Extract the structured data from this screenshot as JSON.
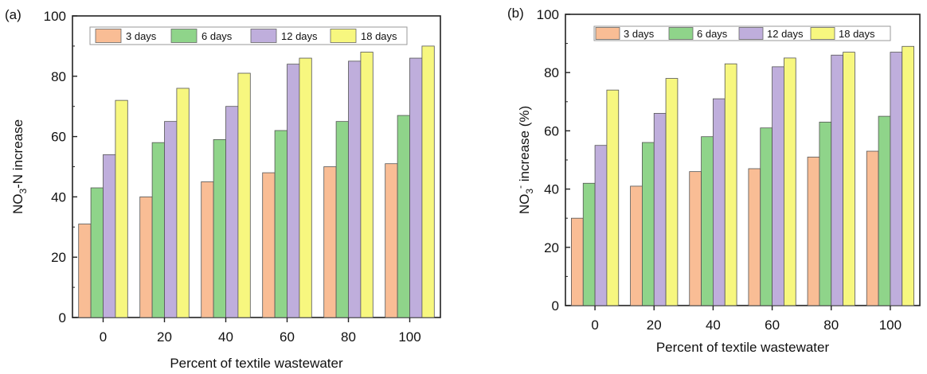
{
  "chart_data": [
    {
      "panel_label": "(a)",
      "type": "bar",
      "categories": [
        "0",
        "20",
        "40",
        "60",
        "80",
        "100"
      ],
      "xlabel": "Percent of textile wastewater",
      "ylabel": {
        "main": "NO",
        "sub": "3",
        "rest": "-N increase"
      },
      "ylim": [
        0,
        100
      ],
      "yticks": [
        "0",
        "20",
        "40",
        "60",
        "80",
        "100"
      ],
      "legend_position": "top",
      "series": [
        {
          "name": "3 days",
          "color": "#f9bd95",
          "values": [
            31,
            40,
            45,
            48,
            50,
            51
          ]
        },
        {
          "name": "6 days",
          "color": "#8fd48a",
          "values": [
            43,
            58,
            59,
            62,
            65,
            67
          ]
        },
        {
          "name": "12 days",
          "color": "#bfaedc",
          "values": [
            54,
            65,
            70,
            84,
            85,
            86
          ]
        },
        {
          "name": "18 days",
          "color": "#f7f77f",
          "values": [
            72,
            76,
            81,
            86,
            88,
            90
          ]
        }
      ]
    },
    {
      "panel_label": "(b)",
      "type": "bar",
      "categories": [
        "0",
        "20",
        "40",
        "60",
        "80",
        "100"
      ],
      "xlabel": "Percent of textile wastewater",
      "ylabel": {
        "main": "NO",
        "sub": "3",
        "sup": "-",
        "rest": " increase (%)"
      },
      "ylim": [
        0,
        100
      ],
      "yticks": [
        "0",
        "20",
        "40",
        "60",
        "80",
        "100"
      ],
      "legend_position": "top",
      "series": [
        {
          "name": "3 days",
          "color": "#f9bd95",
          "values": [
            30,
            41,
            46,
            47,
            51,
            53
          ]
        },
        {
          "name": "6 days",
          "color": "#8fd48a",
          "values": [
            42,
            56,
            58,
            61,
            63,
            65
          ]
        },
        {
          "name": "12 days",
          "color": "#bfaedc",
          "values": [
            55,
            66,
            71,
            82,
            86,
            87
          ]
        },
        {
          "name": "18 days",
          "color": "#f7f77f",
          "values": [
            74,
            78,
            83,
            85,
            87,
            89
          ]
        }
      ]
    }
  ]
}
